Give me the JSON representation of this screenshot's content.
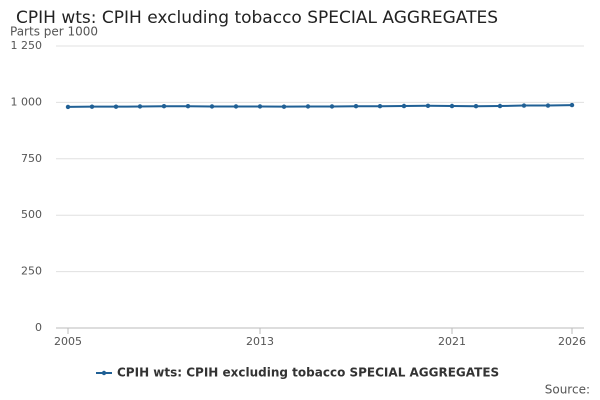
{
  "chart_data": {
    "type": "line",
    "title": "CPIH wts: CPIH excluding tobacco SPECIAL AGGREGATES",
    "y_label": "Parts per 1000",
    "source": "Source:",
    "x": [
      2005,
      2006,
      2007,
      2008,
      2009,
      2010,
      2011,
      2012,
      2013,
      2014,
      2015,
      2016,
      2017,
      2018,
      2019,
      2020,
      2021,
      2022,
      2023,
      2024,
      2025,
      2026
    ],
    "series": [
      {
        "name": "CPIH wts: CPIH excluding tobacco SPECIAL AGGREGATES",
        "color": "#206095",
        "values": [
          980,
          981,
          981,
          982,
          983,
          983,
          982,
          982,
          982,
          981,
          982,
          982,
          983,
          983,
          984,
          985,
          984,
          983,
          984,
          986,
          986,
          988
        ]
      }
    ],
    "xlim": [
      2004.5,
      2026.5
    ],
    "xticks": [
      2005,
      2013,
      2021,
      2026
    ],
    "ylim": [
      0,
      1250
    ],
    "yticks": [
      0,
      250,
      500,
      750,
      {
        "value": 1000,
        "label": "1 000"
      },
      {
        "value": 1250,
        "label": "1 250"
      }
    ],
    "grid": true
  }
}
